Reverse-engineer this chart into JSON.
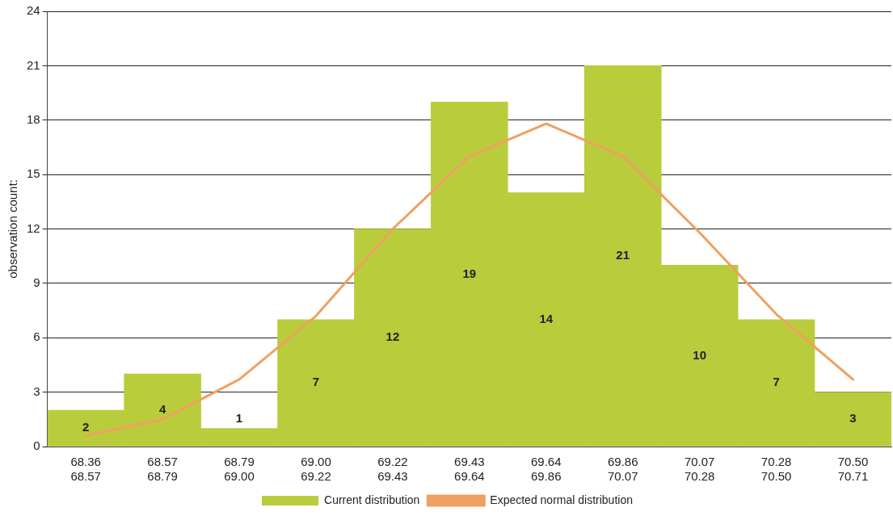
{
  "chart_data": {
    "type": "bar",
    "ylabel": "observation count:",
    "categories": [
      "68.36\n68.57",
      "68.57\n68.79",
      "68.79\n69.00",
      "69.00\n69.22",
      "69.22\n69.43",
      "69.43\n69.64",
      "69.64\n69.86",
      "69.86\n70.07",
      "70.07\n70.28",
      "70.28\n70.50",
      "70.50\n70.71"
    ],
    "series": [
      {
        "name": "Current distribution",
        "color": "#b9cc3c",
        "values": [
          2,
          4,
          1,
          7,
          12,
          19,
          14,
          21,
          10,
          7,
          3
        ],
        "value_labels": [
          "2",
          "4",
          "1",
          "7",
          "12",
          "19",
          "14",
          "21",
          "10",
          "7",
          "3"
        ]
      },
      {
        "type": "line",
        "name": "Expected normal distribution",
        "color": "#f0a060",
        "values": [
          0.6,
          1.5,
          3.7,
          7.2,
          12,
          16,
          17.8,
          16,
          11.8,
          7.3,
          3.7
        ]
      }
    ],
    "ylim": [
      0,
      24
    ],
    "yticks": [
      0,
      3,
      6,
      9,
      12,
      15,
      18,
      21,
      24
    ],
    "grid": "y",
    "legend": "bottom",
    "marker": "none",
    "line_style": "solid"
  }
}
